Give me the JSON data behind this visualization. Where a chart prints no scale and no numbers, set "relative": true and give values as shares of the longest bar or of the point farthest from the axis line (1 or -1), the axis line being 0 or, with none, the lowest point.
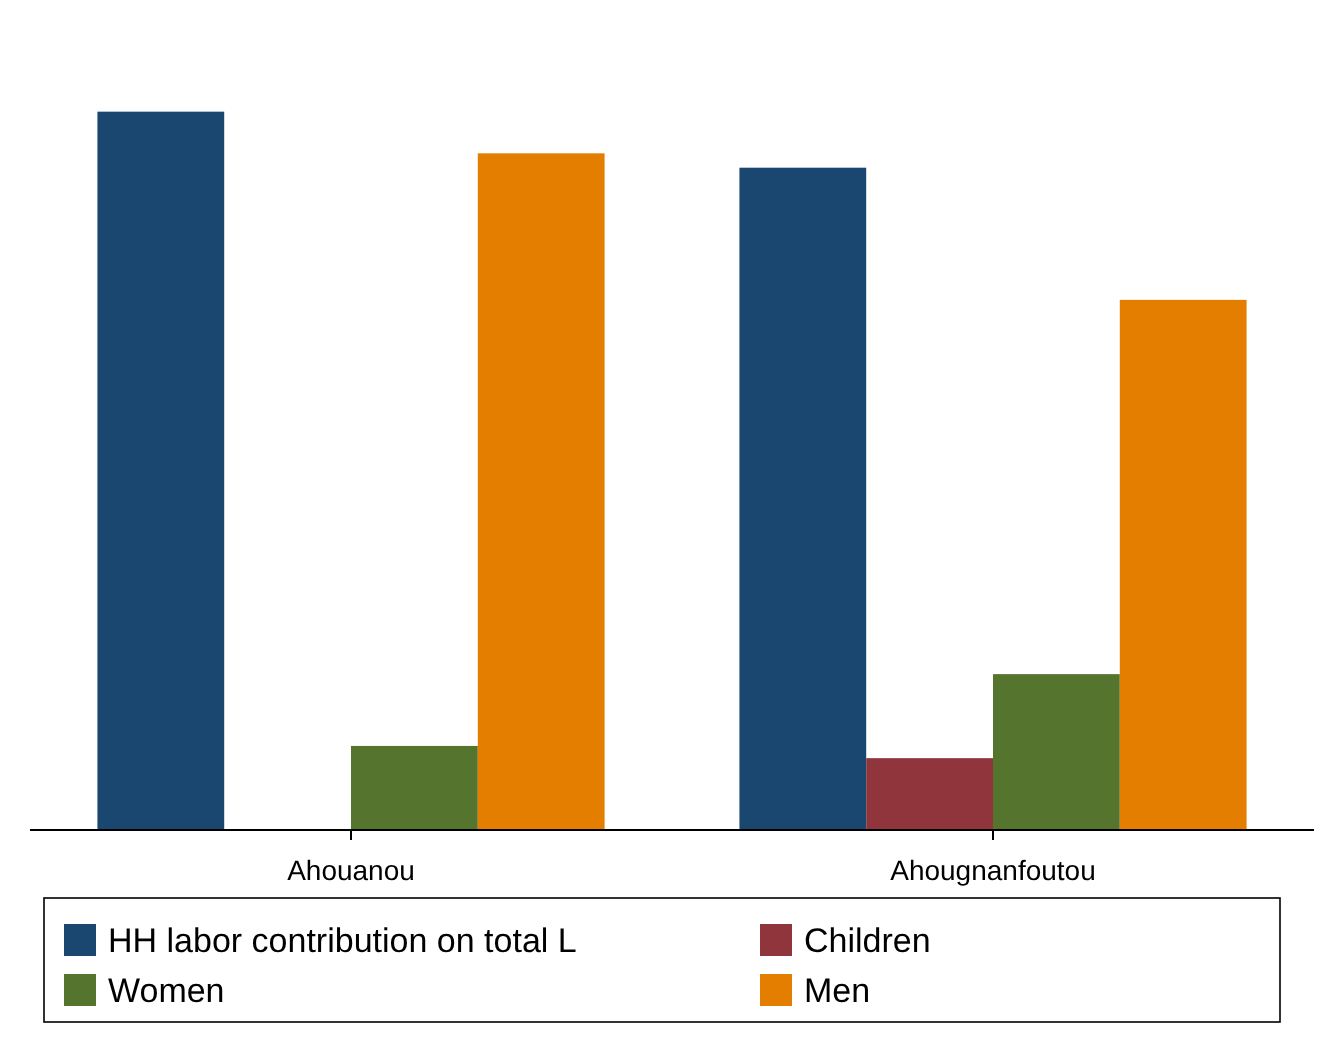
{
  "chart_data": {
    "type": "bar",
    "relative": true,
    "categories": [
      "Ahouanou",
      "Ahougnanfoutou"
    ],
    "series": [
      {
        "name": "HH labor contribution on total L",
        "color": "#1a476f",
        "values": [
          1,
          0.922
        ]
      },
      {
        "name": "Children",
        "color": "#90353b",
        "values": [
          null,
          0.1
        ]
      },
      {
        "name": "Women",
        "color": "#55752f",
        "values": [
          0.117,
          0.217
        ]
      },
      {
        "name": "Men",
        "color": "#e37e00",
        "values": [
          0.942,
          0.738
        ]
      }
    ],
    "legend": "bottom"
  }
}
